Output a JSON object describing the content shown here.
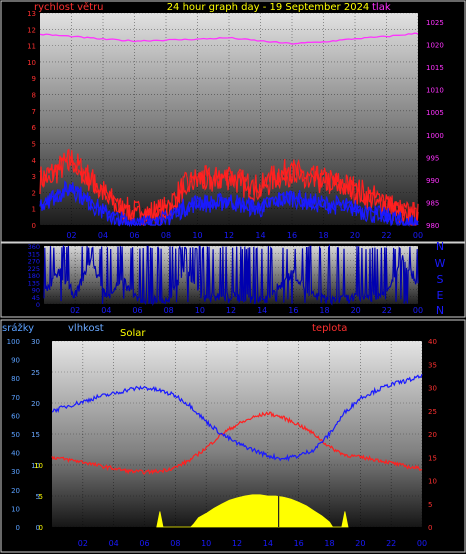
{
  "chart_data": [
    {
      "type": "line",
      "title": "24 hour graph day - 19 September 2024",
      "left_axis_label": "rychlost větru",
      "right_axis_label": "tlak",
      "left_ticks": [
        0,
        1,
        2,
        3,
        4,
        5,
        6,
        7,
        8,
        9,
        10,
        11,
        12,
        13
      ],
      "right_ticks": [
        980,
        985,
        990,
        995,
        1000,
        1005,
        1010,
        1015,
        1020,
        1025
      ],
      "ylim_left": [
        0,
        13
      ],
      "ylim_right": [
        980,
        1027
      ],
      "x_ticks": [
        "02",
        "04",
        "06",
        "08",
        "10",
        "12",
        "14",
        "16",
        "18",
        "20",
        "22",
        "00"
      ],
      "series": [
        {
          "color": "#ff2020",
          "hours": [
            0,
            1,
            2,
            3,
            4,
            5,
            6,
            7,
            8,
            9,
            10,
            11,
            12,
            13,
            14,
            15,
            16,
            17,
            18,
            19,
            20,
            21,
            22,
            23,
            24
          ],
          "values": [
            2.8,
            3.3,
            4.0,
            3.0,
            2.0,
            1.0,
            0.7,
            0.7,
            0.9,
            2.2,
            2.8,
            2.7,
            3.0,
            2.5,
            2.2,
            3.0,
            3.3,
            2.8,
            2.7,
            2.5,
            2.2,
            1.7,
            1.3,
            0.7,
            0.5
          ]
        },
        {
          "color": "#1a1aff",
          "hours": [
            0,
            1,
            2,
            3,
            4,
            5,
            6,
            7,
            8,
            9,
            10,
            11,
            12,
            13,
            14,
            15,
            16,
            17,
            18,
            19,
            20,
            21,
            22,
            23,
            24
          ],
          "values": [
            1.3,
            1.8,
            2.3,
            1.5,
            0.8,
            0.3,
            0.1,
            0.1,
            0.3,
            1.0,
            1.4,
            1.3,
            1.5,
            1.2,
            1.0,
            1.5,
            1.7,
            1.4,
            1.3,
            1.2,
            1.0,
            0.7,
            0.5,
            0.2,
            0.1
          ]
        },
        {
          "color": "#ff33ff",
          "hours": [
            0,
            2,
            4,
            6,
            8,
            10,
            12,
            14,
            16,
            18,
            20,
            22,
            24
          ],
          "values": [
            1022.3,
            1021.8,
            1021.2,
            1020.8,
            1021.0,
            1021.2,
            1021.5,
            1020.8,
            1020.2,
            1020.6,
            1021.3,
            1021.8,
            1022.5
          ]
        }
      ]
    },
    {
      "type": "line",
      "right_labels": [
        "N",
        "W",
        "S",
        "E",
        "N"
      ],
      "left_ticks": [
        0,
        45,
        90,
        135,
        180,
        225,
        270,
        315,
        360
      ],
      "ylim": [
        0,
        360
      ],
      "x_ticks": [
        "02",
        "04",
        "06",
        "08",
        "10",
        "12",
        "14",
        "16",
        "18",
        "20",
        "22",
        "00"
      ],
      "series": [
        {
          "color": "#0000b0",
          "hours": [
            0,
            1,
            2,
            3,
            4,
            5,
            6,
            7,
            8,
            9,
            10,
            11,
            12,
            13,
            14,
            15,
            16,
            17,
            18,
            19,
            20,
            21,
            22,
            23,
            24
          ],
          "values": [
            60,
            200,
            50,
            280,
            40,
            150,
            30,
            20,
            15,
            220,
            60,
            40,
            50,
            30,
            20,
            100,
            200,
            60,
            30,
            25,
            40,
            50,
            60,
            300,
            120
          ]
        }
      ]
    },
    {
      "type": "line",
      "labels": {
        "rain": "srážky",
        "humidity": "vlhkost",
        "solar": "Solar",
        "temperature": "teplota"
      },
      "rain_ticks": [
        0,
        10,
        20,
        30,
        40,
        50,
        60,
        70,
        80,
        90,
        100
      ],
      "humidity_ticks": [
        0,
        5,
        10,
        15,
        20,
        25,
        30
      ],
      "solar_ticks": [
        0,
        5,
        10
      ],
      "temperature_ticks": [
        0,
        5,
        10,
        15,
        20,
        25,
        30,
        35,
        40
      ],
      "ylim_humidity": [
        0,
        30
      ],
      "ylim_temperature": [
        0,
        40
      ],
      "x_ticks": [
        "02",
        "04",
        "06",
        "08",
        "10",
        "12",
        "14",
        "16",
        "18",
        "20",
        "22",
        "00"
      ],
      "series": [
        {
          "name": "vlhkost",
          "color": "#1a1aff",
          "hours": [
            0,
            1,
            2,
            3,
            4,
            5,
            6,
            7,
            8,
            9,
            10,
            11,
            12,
            13,
            14,
            15,
            16,
            17,
            18,
            19,
            20,
            21,
            22,
            23,
            24
          ],
          "values": [
            18.7,
            19.5,
            20.2,
            21.0,
            21.5,
            22.2,
            22.5,
            22.0,
            21.2,
            19.5,
            17.0,
            15.0,
            13.5,
            12.5,
            11.5,
            11.0,
            11.5,
            12.5,
            15.0,
            18.5,
            20.8,
            22.0,
            23.0,
            23.6,
            24.3
          ]
        },
        {
          "name": "teplota",
          "color": "#ff2020",
          "hours": [
            0,
            1,
            2,
            3,
            4,
            5,
            6,
            7,
            8,
            9,
            10,
            11,
            12,
            13,
            14,
            15,
            16,
            17,
            18,
            19,
            20,
            21,
            22,
            23,
            24
          ],
          "values": [
            15.0,
            14.5,
            14.0,
            13.2,
            12.6,
            12.0,
            11.8,
            12.0,
            12.8,
            14.5,
            17.0,
            20.0,
            22.0,
            23.5,
            24.5,
            23.5,
            22.0,
            20.0,
            17.2,
            15.5,
            15.0,
            14.5,
            13.8,
            13.0,
            12.5
          ]
        },
        {
          "name": "Solar",
          "color": "#ffff00",
          "hours": [
            6.8,
            7.0,
            7.2,
            9.0,
            9.2,
            9.5,
            10,
            10.5,
            11,
            11.5,
            12,
            12.5,
            13,
            13.5,
            14,
            14.5,
            15,
            15.5,
            16,
            16.5,
            17,
            17.5,
            18,
            18.2,
            18.8,
            19.0,
            19.2
          ],
          "values": [
            0,
            2.5,
            0,
            0,
            0.5,
            1.5,
            2.2,
            3.0,
            3.7,
            4.3,
            4.7,
            5.0,
            5.2,
            5.2,
            5.0,
            5.0,
            4.8,
            4.5,
            4.0,
            3.4,
            2.6,
            1.8,
            0.8,
            0,
            0,
            2.5,
            0
          ]
        }
      ]
    }
  ]
}
